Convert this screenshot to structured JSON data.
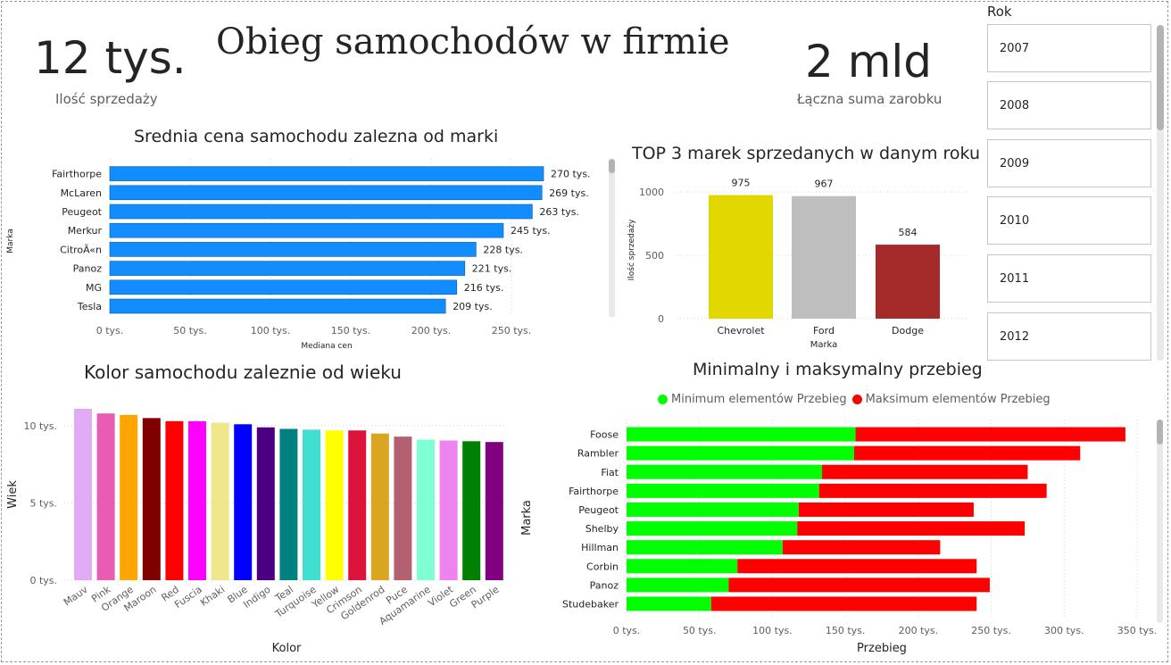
{
  "header": {
    "title": "Obieg samochodów w firmie",
    "kpi_sales": {
      "value": "12 tys.",
      "label": "Ilość sprzedaży"
    },
    "kpi_revenue": {
      "value": "2 mld",
      "label": "Łączna suma zarobku"
    }
  },
  "slicer": {
    "title": "Rok",
    "items": [
      "2007",
      "2008",
      "2009",
      "2010",
      "2011",
      "2012"
    ]
  },
  "chart_data": [
    {
      "id": "avg_price",
      "type": "bar",
      "orientation": "horizontal",
      "title": "Srednia cena samochodu zalezna od marki",
      "xlabel": "Mediana cen",
      "ylabel": "Marka",
      "categories": [
        "Fairthorpe",
        "McLaren",
        "Peugeot",
        "Merkur",
        "CitroÃ«n",
        "Panoz",
        "MG",
        "Tesla"
      ],
      "values": [
        270,
        269,
        263,
        245,
        228,
        221,
        216,
        209
      ],
      "data_labels": [
        "270 tys.",
        "269 tys.",
        "263 tys.",
        "245 tys.",
        "228 tys.",
        "221 tys.",
        "216 tys.",
        "209 tys."
      ],
      "xticks": [
        "0 tys.",
        "50 tys.",
        "100 tys.",
        "150 tys.",
        "200 tys.",
        "250 tys."
      ],
      "xtick_values": [
        0,
        50,
        100,
        150,
        200,
        250
      ],
      "xlim": [
        0,
        270
      ],
      "color": "#118DFF",
      "grid": true
    },
    {
      "id": "top3",
      "type": "bar",
      "orientation": "vertical",
      "title": "TOP 3 marek sprzedanych w danym roku",
      "xlabel": "Marka",
      "ylabel": "Ilość sprzedaży",
      "categories": [
        "Chevrolet",
        "Ford",
        "Dodge"
      ],
      "values": [
        975,
        967,
        584
      ],
      "data_labels": [
        "975",
        "967",
        "584"
      ],
      "colors": [
        "#E1D800",
        "#BEBEBE",
        "#A52A2A"
      ],
      "yticks": [
        "0",
        "500",
        "1000"
      ],
      "ytick_values": [
        0,
        500,
        1000
      ],
      "ylim": [
        0,
        1000
      ],
      "grid": true
    },
    {
      "id": "color_age",
      "type": "bar",
      "orientation": "vertical",
      "title": "Kolor samochodu zaleznie od wieku",
      "xlabel": "Kolor",
      "ylabel": "Wiek",
      "categories": [
        "Mauv",
        "Pink",
        "Orange",
        "Maroon",
        "Red",
        "Fuscia",
        "Khaki",
        "Blue",
        "Indigo",
        "Teal",
        "Turquoise",
        "Yellow",
        "Crimson",
        "Goldenrod",
        "Puce",
        "Aquamarine",
        "Violet",
        "Green",
        "Purple"
      ],
      "values": [
        11.1,
        10.8,
        10.7,
        10.5,
        10.3,
        10.3,
        10.2,
        10.1,
        9.9,
        9.8,
        9.75,
        9.7,
        9.7,
        9.5,
        9.3,
        9.1,
        9.05,
        9.0,
        8.95
      ],
      "colors": [
        "#E0AAF5",
        "#E85CB6",
        "#FFA500",
        "#800000",
        "#FF0000",
        "#FF00FF",
        "#F0E68C",
        "#0000FF",
        "#4B0082",
        "#008080",
        "#40E0D0",
        "#FFFF00",
        "#DC143C",
        "#DAA520",
        "#B36170",
        "#7FFFD4",
        "#EE82EE",
        "#008000",
        "#800080"
      ],
      "yticks": [
        "0 tys.",
        "5 tys.",
        "10 tys."
      ],
      "ytick_values": [
        0,
        5,
        10
      ],
      "ylim": [
        0,
        11.1
      ],
      "grid": true
    },
    {
      "id": "mileage",
      "type": "bar",
      "orientation": "horizontal",
      "stacked": true,
      "title": "Minimalny i maksymalny przebieg",
      "xlabel": "Przebieg",
      "ylabel": "Marka",
      "legend_position": "top",
      "categories": [
        "Foose",
        "Rambler",
        "Fiat",
        "Fairthorpe",
        "Peugeot",
        "Shelby",
        "Hillman",
        "Corbin",
        "Panoz",
        "Studebaker"
      ],
      "series": [
        {
          "name": "Minimum elementów Przebieg",
          "color": "#00FF00",
          "values": [
            157,
            156,
            134,
            132,
            118,
            117,
            107,
            76,
            70,
            58
          ]
        },
        {
          "name": "Maksimum elementów Przebieg",
          "color": "#FF0000",
          "values": [
            185,
            155,
            141,
            156,
            120,
            156,
            108,
            164,
            179,
            182
          ]
        }
      ],
      "xticks": [
        "0 tys.",
        "50 tys.",
        "100 tys.",
        "150 tys.",
        "200 tys.",
        "250 tys.",
        "300 tys.",
        "350 tys."
      ],
      "xtick_values": [
        0,
        50,
        100,
        150,
        200,
        250,
        300,
        350
      ],
      "xlim": [
        0,
        350
      ],
      "grid": true
    }
  ]
}
